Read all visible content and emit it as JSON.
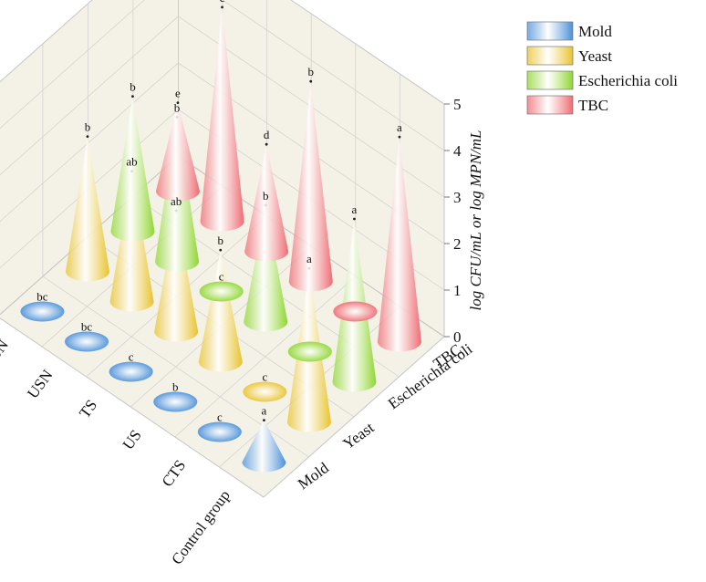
{
  "chart_data": {
    "type": "bar3d",
    "title": "",
    "zlabel": "log CFU/mL or log MPN/mL",
    "zlim": [
      0,
      5
    ],
    "zticks": [
      "0",
      "1",
      "2",
      "3",
      "4",
      "5"
    ],
    "groups": [
      "Control group",
      "CTS",
      "US",
      "TS",
      "USN",
      "TSN"
    ],
    "legend_position": "top-right",
    "series": [
      {
        "name": "Mold",
        "axis_label": "Mold",
        "color": "#4a90d9",
        "values": [
          0.9,
          0.05,
          0.05,
          0.05,
          0.05,
          0.05
        ],
        "labels": [
          "a",
          "c",
          "b",
          "c",
          "bc",
          "bc"
        ]
      },
      {
        "name": "Yeast",
        "axis_label": "Yeast",
        "color": "#e8c32e",
        "values": [
          3.3,
          0.05,
          2.4,
          2.6,
          2.8,
          2.9
        ],
        "labels": [
          "a",
          "c",
          "b",
          "ab",
          "ab",
          "b"
        ]
      },
      {
        "name": "Escherichia coli",
        "axis_label": "Escherichia coli",
        "color": "#8fd631",
        "values": [
          3.5,
          0.05,
          2.5,
          0.05,
          3.1,
          2.9
        ],
        "labels": [
          "a",
          "",
          "b",
          "c",
          "b",
          "b"
        ]
      },
      {
        "name": "TBC",
        "axis_label": "TBC",
        "color": "#ee6b72",
        "values": [
          4.4,
          0.05,
          4.3,
          2.3,
          4.6,
          1.9
        ],
        "labels": [
          "a",
          "",
          "b",
          "d",
          "c",
          "e"
        ]
      }
    ]
  }
}
